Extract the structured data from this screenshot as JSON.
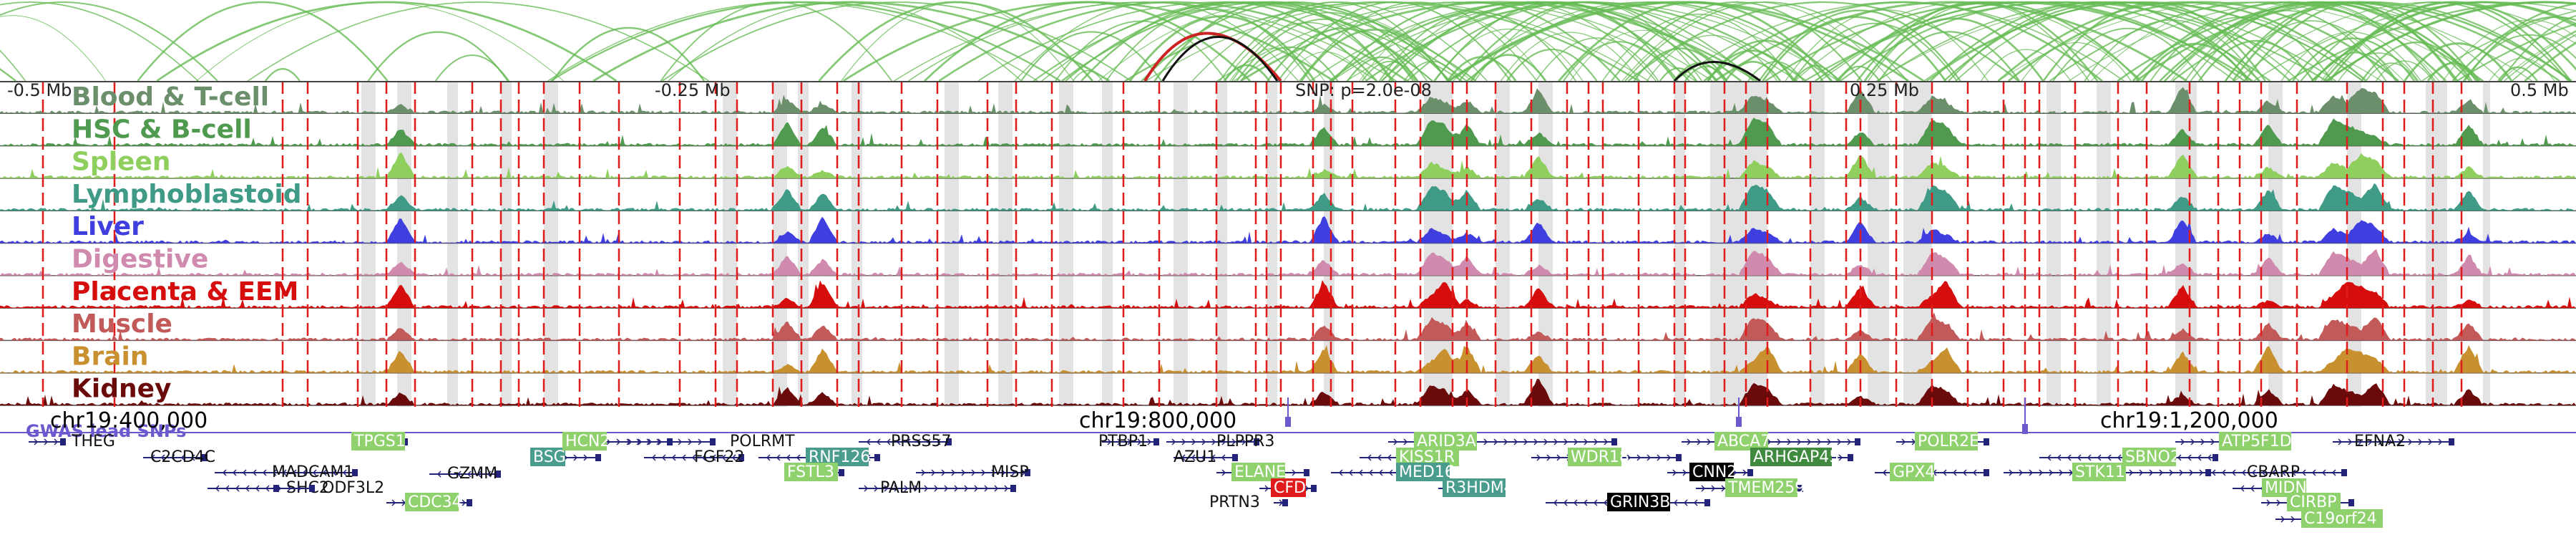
{
  "axis": {
    "left_label": "-0.5 Mb",
    "mid_left_label": "-0.25 Mb",
    "snp_label": "SNP: p=2.0e-08",
    "mid_right_label": "0.25 Mb",
    "right_label": "0.5 Mb"
  },
  "tracks": [
    {
      "name": "Blood & T-cell",
      "color": "#6b8e6b"
    },
    {
      "name": "HSC & B-cell",
      "color": "#4f9a4f"
    },
    {
      "name": "Spleen",
      "color": "#8ecf5e"
    },
    {
      "name": "Lymphoblastoid",
      "color": "#3f9a86"
    },
    {
      "name": "Liver",
      "color": "#3f3fe0"
    },
    {
      "name": "Digestive",
      "color": "#d08aae"
    },
    {
      "name": "Placenta & EEM",
      "color": "#d60d0d"
    },
    {
      "name": "Muscle",
      "color": "#c35a5a"
    },
    {
      "name": "Brain",
      "color": "#c8902e"
    },
    {
      "name": "Kidney",
      "color": "#6b0a0a"
    }
  ],
  "gwas": {
    "label": "GWAS lead SNPs",
    "color": "#6a5acd"
  },
  "coordinates": [
    {
      "label": "chr19:400,000"
    },
    {
      "label": "chr19:800,000"
    },
    {
      "label": "chr19:1,200,000"
    }
  ],
  "genes": [
    {
      "label": "THEG",
      "style": "plain"
    },
    {
      "label": "C2CD4C",
      "style": "plain"
    },
    {
      "label": "MADCAM1",
      "style": "plain"
    },
    {
      "label": "SHC2",
      "style": "plain"
    },
    {
      "label": "ODF3L2",
      "style": "plain"
    },
    {
      "label": "TPGS1",
      "style": "light-green"
    },
    {
      "label": "CDC34",
      "style": "light-green"
    },
    {
      "label": "GZMM",
      "style": "plain"
    },
    {
      "label": "BSG",
      "style": "teal"
    },
    {
      "label": "HCN2",
      "style": "light-green"
    },
    {
      "label": "POLRMT",
      "style": "plain"
    },
    {
      "label": "FGF22",
      "style": "plain"
    },
    {
      "label": "RNF126",
      "style": "teal"
    },
    {
      "label": "FSTL3",
      "style": "light-green"
    },
    {
      "label": "PRSS57",
      "style": "plain"
    },
    {
      "label": "PALM",
      "style": "plain"
    },
    {
      "label": "MISP",
      "style": "plain"
    },
    {
      "label": "PTBP1",
      "style": "plain"
    },
    {
      "label": "PLPPR3",
      "style": "plain"
    },
    {
      "label": "AZU1",
      "style": "plain"
    },
    {
      "label": "PRTN3",
      "style": "plain"
    },
    {
      "label": "ELANE",
      "style": "light-green"
    },
    {
      "label": "CFD",
      "style": "red"
    },
    {
      "label": "ARID3A",
      "style": "light-green"
    },
    {
      "label": "KISS1R",
      "style": "light-green"
    },
    {
      "label": "MED16",
      "style": "teal"
    },
    {
      "label": "R3HDM4",
      "style": "teal"
    },
    {
      "label": "WDR18",
      "style": "light-green"
    },
    {
      "label": "GRIN3B",
      "style": "black"
    },
    {
      "label": "ABCA7",
      "style": "light-green"
    },
    {
      "label": "CNN2",
      "style": "black"
    },
    {
      "label": "ARHGAP45",
      "style": "dark-green"
    },
    {
      "label": "TMEM259",
      "style": "light-green"
    },
    {
      "label": "POLR2E",
      "style": "light-green"
    },
    {
      "label": "GPX4",
      "style": "light-green"
    },
    {
      "label": "SBNO2",
      "style": "light-green"
    },
    {
      "label": "STK11",
      "style": "light-green"
    },
    {
      "label": "ATP5F1D",
      "style": "light-green"
    },
    {
      "label": "EFNA2",
      "style": "plain"
    },
    {
      "label": "CBARP",
      "style": "plain"
    },
    {
      "label": "MIDN",
      "style": "light-green"
    },
    {
      "label": "CIRBP",
      "style": "light-green"
    },
    {
      "label": "C19orf24",
      "style": "light-green"
    }
  ],
  "colors": {
    "arc": "#66bb55",
    "arc_highlight": "#cc2222",
    "enhancer_line": "#e01b1b",
    "shade": "#e3e3e3",
    "gene_line": "#23237a",
    "plain_text": "#111111",
    "light_green": "#8fd16c",
    "teal": "#4a9d8c",
    "dark_green": "#3f8a3f",
    "red": "#e01b1b",
    "black": "#000000"
  }
}
